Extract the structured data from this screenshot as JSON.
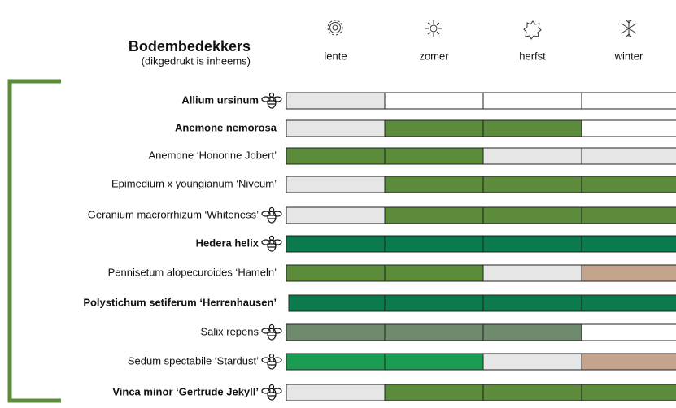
{
  "header": {
    "title": "Bodembedekkers",
    "subtitle": "(dikgedrukt is inheems)"
  },
  "seasons": [
    "lente",
    "zomer",
    "herfst",
    "winter"
  ],
  "colors": {
    "gray": "#e6e6e6",
    "white": "#ffffff",
    "green": "#5b8b3b",
    "dark": "#0b7a4c",
    "bright": "#1c9c52",
    "sage": "#6f8a6c",
    "tan": "#c4a48c"
  },
  "rows": [
    {
      "name": "Allium ursinum",
      "bold": true,
      "bee": true,
      "cells": [
        "gray",
        "white",
        "white",
        "white"
      ]
    },
    {
      "name": "Anemone nemorosa",
      "bold": true,
      "bee": false,
      "cells": [
        "gray",
        "green",
        "green",
        "white"
      ]
    },
    {
      "name": "Anemone ‘Honorine Jobert’",
      "bold": false,
      "bee": false,
      "cells": [
        "green",
        "green",
        "gray",
        "gray"
      ]
    },
    {
      "name": "Epimedium x youngianum ‘Niveum’",
      "bold": false,
      "bee": false,
      "cells": [
        "gray",
        "green",
        "green",
        "green"
      ]
    },
    {
      "name": "Geranium macrorrhizum ‘Whiteness’",
      "bold": false,
      "bee": true,
      "cells": [
        "gray",
        "green",
        "green",
        "green"
      ]
    },
    {
      "name": "Hedera helix",
      "bold": true,
      "bee": true,
      "cells": [
        "dark",
        "dark",
        "dark",
        "dark"
      ]
    },
    {
      "name": "Pennisetum alopecuroides ‘Hameln’",
      "bold": false,
      "bee": false,
      "cells": [
        "green",
        "green",
        "gray",
        "tan"
      ]
    },
    {
      "name": "Polystichum setiferum ‘Herrenhausen’",
      "bold": true,
      "bee": false,
      "cells": [
        "dark",
        "dark",
        "dark",
        "dark"
      ]
    },
    {
      "name": "Salix repens",
      "bold": false,
      "bee": true,
      "cells": [
        "sage",
        "sage",
        "sage",
        "white"
      ]
    },
    {
      "name": "Sedum spectabile ‘Stardust’",
      "bold": false,
      "bee": true,
      "cells": [
        "bright",
        "bright",
        "gray",
        "tan"
      ]
    },
    {
      "name": "Vinca minor ‘Gertrude Jekyll’",
      "bold": true,
      "bee": true,
      "cells": [
        "gray",
        "green",
        "green",
        "green"
      ]
    }
  ]
}
